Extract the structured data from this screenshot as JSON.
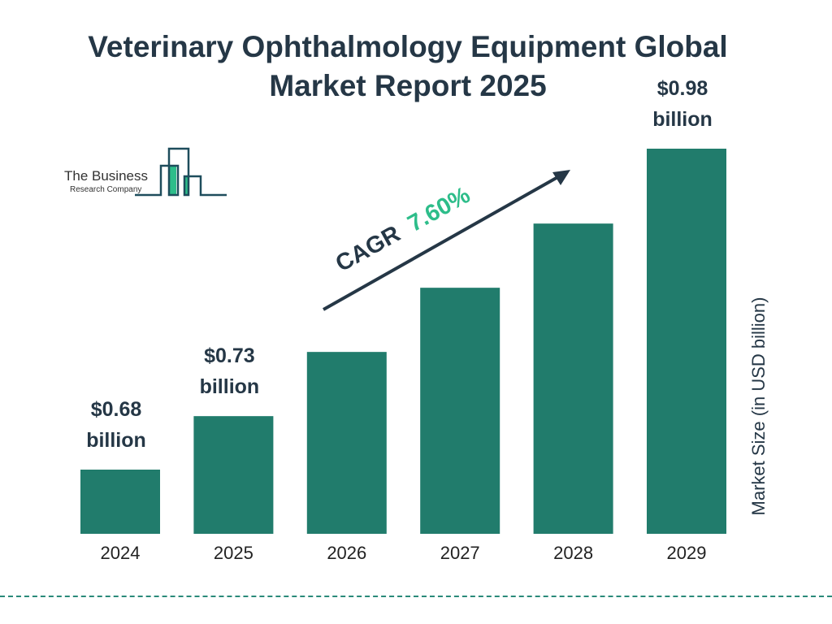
{
  "title_line1": "Veterinary Ophthalmology Equipment Global",
  "title_line2": "Market Report 2025",
  "logo": {
    "line1": "The Business",
    "line2": "Research Company"
  },
  "cagr": {
    "label": "CAGR",
    "value": "7.60%"
  },
  "colors": {
    "bar": "#217c6c",
    "text": "#253746",
    "accent": "#2dbd8a"
  },
  "chart_data": {
    "type": "bar",
    "categories": [
      "2024",
      "2025",
      "2026",
      "2027",
      "2028",
      "2029"
    ],
    "values": [
      0.68,
      0.73,
      0.79,
      0.85,
      0.91,
      0.98
    ],
    "data_labels": [
      [
        "$0.68",
        "billion"
      ],
      [
        "$0.73",
        "billion"
      ],
      null,
      null,
      null,
      [
        "$0.98",
        "billion"
      ]
    ],
    "ylabel": "Market Size (in USD billion)",
    "grid": false
  }
}
